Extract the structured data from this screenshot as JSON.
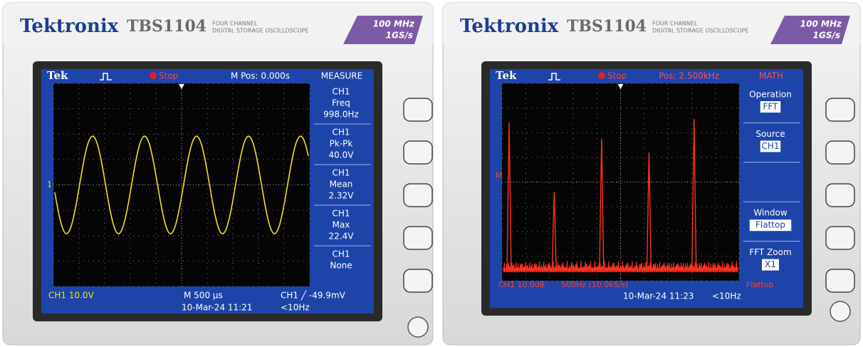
{
  "left": {
    "brand": "Tektronix",
    "model": "TBS1104",
    "desc1": "FOUR CHANNEL",
    "desc2": "DIGITAL STORAGE OSCILLOSCOPE",
    "badge1": "100 MHz",
    "badge2": "1GS/s",
    "screen": {
      "logo": "Tek",
      "status": "Stop",
      "position": "M Pos: 0.000s",
      "menu_title": "MEASURE",
      "marker": "1",
      "menu": [
        {
          "lines": [
            "CH1",
            "Freq",
            "998.0Hz"
          ]
        },
        {
          "lines": [
            "CH1",
            "Pk-Pk",
            "40.0V"
          ]
        },
        {
          "lines": [
            "CH1",
            "Mean",
            "2.32V"
          ]
        },
        {
          "lines": [
            "CH1",
            "Max",
            "22.4V"
          ]
        },
        {
          "lines": [
            "CH1",
            "None"
          ]
        }
      ],
      "footer": [
        "CH1  10.0V",
        "M 500 µs",
        "CH1 ╱ -49.9mV",
        "10-Mar-24 11:21",
        "<10Hz"
      ]
    }
  },
  "right": {
    "brand": "Tektronix",
    "model": "TBS1104",
    "desc1": "FOUR CHANNEL",
    "desc2": "DIGITAL STORAGE OSCILLOSCOPE",
    "badge1": "100 MHz",
    "badge2": "1GS/s",
    "screen": {
      "logo": "Tek",
      "status": "Stop",
      "position": "Pos: 2.500kHz",
      "menu_title": "MATH",
      "marker": "M",
      "menu": [
        {
          "label": "Operation",
          "value": "FFT"
        },
        {
          "label": "Source",
          "value": "CH1"
        },
        {
          "label": "Window",
          "value": "Flattop"
        },
        {
          "label": "FFT Zoom",
          "value": "X1"
        }
      ],
      "footer": [
        "CH1 10.0dB",
        "500Hz (10.0kS/s)",
        "Flattop",
        "10-Mar-24 11:23",
        "<10Hz"
      ]
    }
  }
}
